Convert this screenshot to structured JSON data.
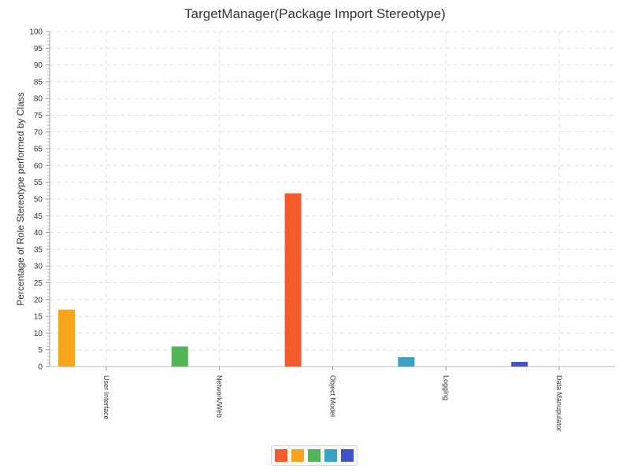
{
  "chart_data": {
    "type": "bar",
    "title": "TargetManager(Package Import Stereotype)",
    "ylabel": "Percentage of Role Stereotype performed by Class",
    "xlabel": "",
    "ylim": [
      0,
      100
    ],
    "ytick_step": 5,
    "categories": [
      "User Interface",
      "Network/Web",
      "Object Model",
      "Logging",
      "Data Manupulator"
    ],
    "series_colors": [
      "#f45b2b",
      "#f8a51d",
      "#53b656",
      "#3aa3c2",
      "#4252c8"
    ],
    "bars": [
      {
        "category": "User Interface",
        "series_index": 1,
        "value": 17
      },
      {
        "category": "Network/Web",
        "series_index": 2,
        "value": 6
      },
      {
        "category": "Object Model",
        "series_index": 0,
        "value": 51.7
      },
      {
        "category": "Logging",
        "series_index": 3,
        "value": 2.8
      },
      {
        "category": "Data Manupulator",
        "series_index": 4,
        "value": 1.4
      }
    ],
    "grid": true,
    "legend_position": "bottom-center"
  }
}
